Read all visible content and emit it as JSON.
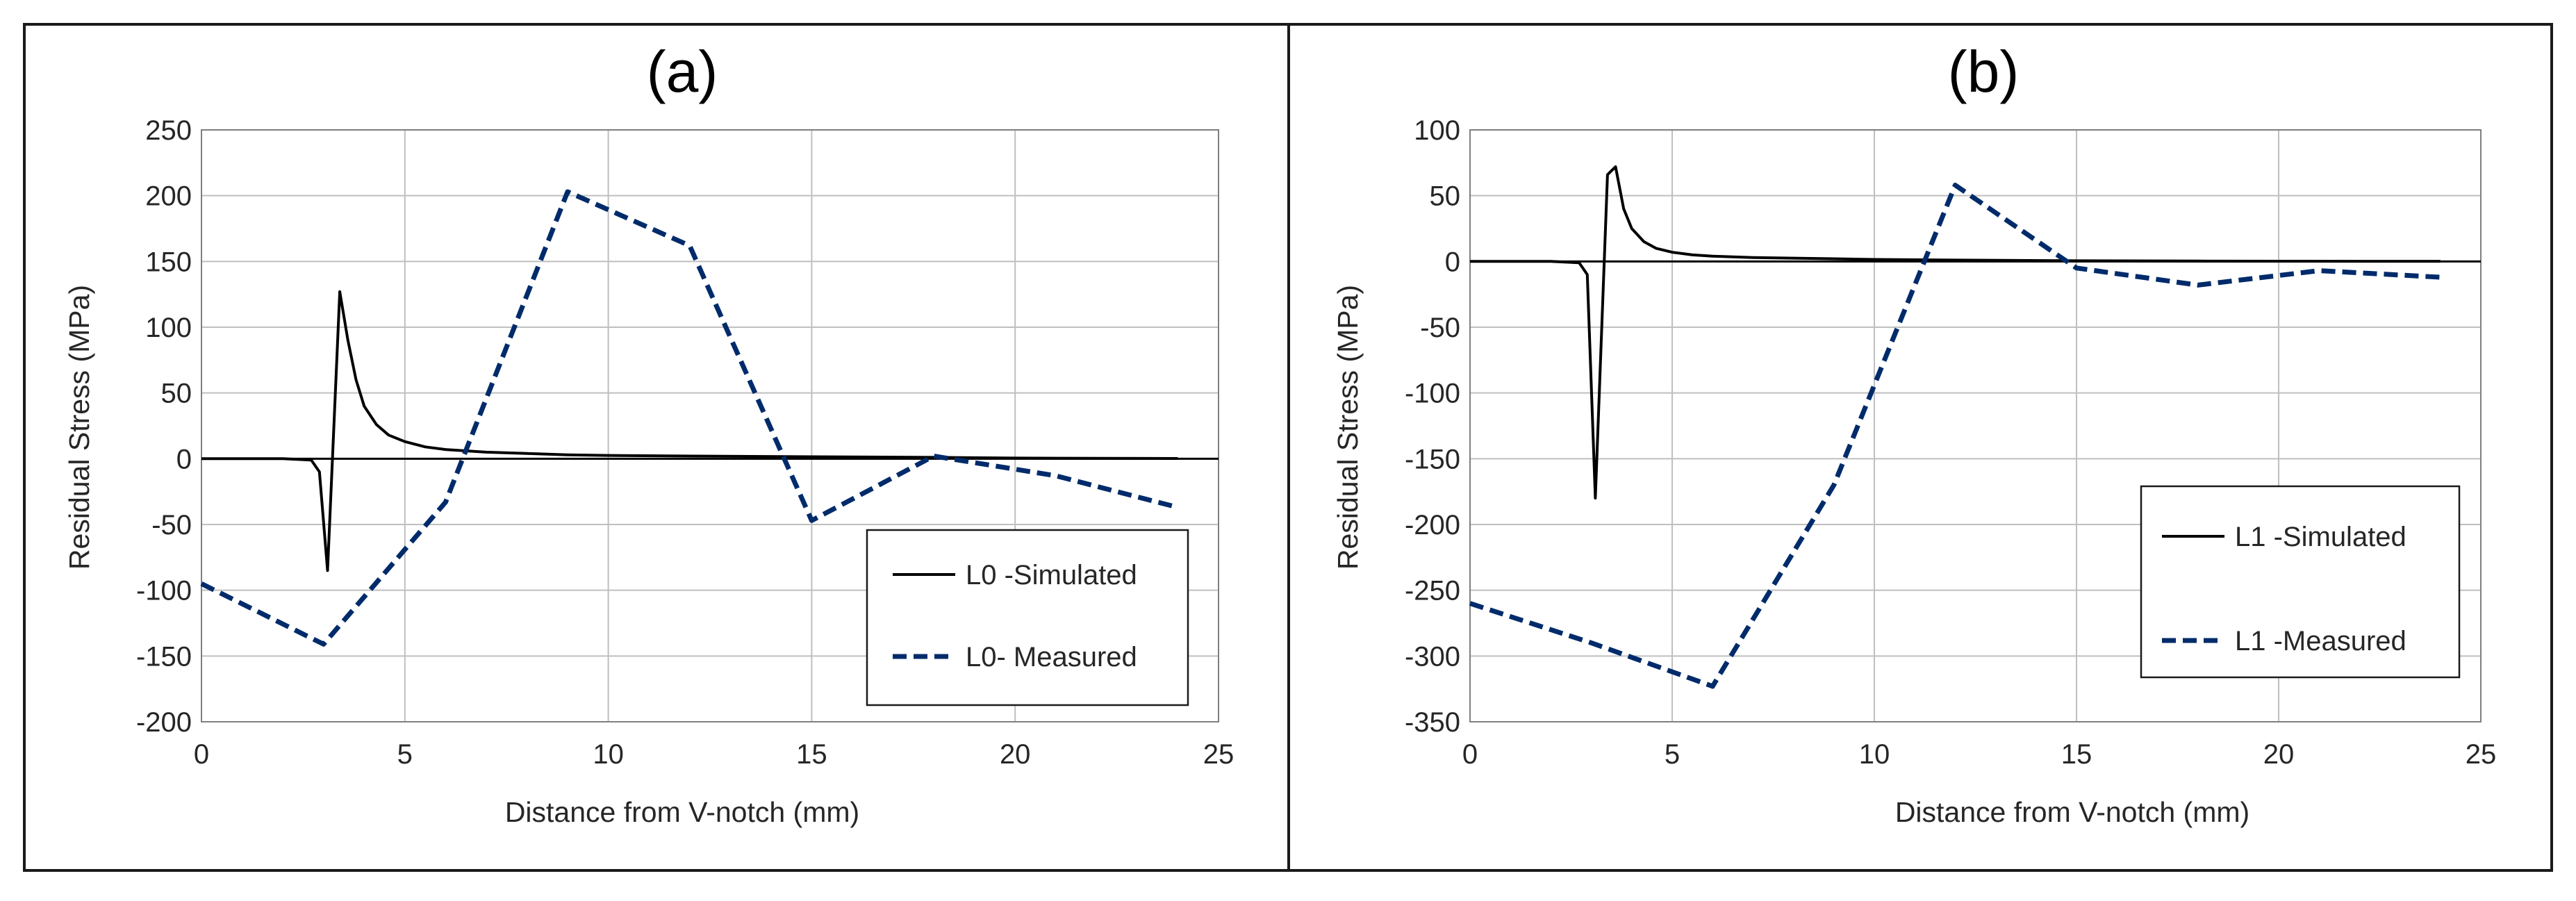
{
  "colors": {
    "frame": "#1a1a1a",
    "grid": "#bfbfbf",
    "plot_border": "#7f7f7f",
    "text": "#262626",
    "simulated": "#000000",
    "measured": "#002b6b"
  },
  "chart_data": [
    {
      "type": "line",
      "title": "(a)",
      "xlabel": "Distance from V-notch (mm)",
      "ylabel": "Residual Stress (MPa)",
      "xlim": [
        0,
        25
      ],
      "ylim": [
        -200,
        250
      ],
      "xticks": [
        0,
        5,
        10,
        15,
        20,
        25
      ],
      "yticks": [
        -200,
        -150,
        -100,
        -50,
        0,
        50,
        100,
        150,
        200,
        250
      ],
      "grid": true,
      "legend_position": "bottom-right",
      "series": [
        {
          "name": "L0 -Simulated",
          "style": "solid",
          "x": [
            0,
            1,
            2,
            2.7,
            2.9,
            3.1,
            3.4,
            3.6,
            3.8,
            4.0,
            4.3,
            4.6,
            5.0,
            5.5,
            6,
            7,
            8,
            9,
            10,
            12,
            15,
            18,
            20,
            22,
            24
          ],
          "y": [
            0,
            0,
            0,
            -1,
            -10,
            -85,
            127,
            90,
            60,
            40,
            26,
            18,
            13,
            9,
            7,
            5,
            4,
            3,
            2.5,
            2,
            1.5,
            1,
            0.5,
            0.3,
            0.2
          ]
        },
        {
          "name": "L0- Measured",
          "style": "dashed",
          "x": [
            0,
            3,
            6,
            9,
            12,
            15,
            18,
            21,
            24
          ],
          "y": [
            -95,
            -141,
            -33,
            203,
            162,
            -47,
            2,
            -13,
            -37
          ]
        }
      ]
    },
    {
      "type": "line",
      "title": "(b)",
      "xlabel": "Distance from V-notch (mm)",
      "ylabel": "Residual Stress (MPa)",
      "xlim": [
        0,
        25
      ],
      "ylim": [
        -350,
        100
      ],
      "xticks": [
        0,
        5,
        10,
        15,
        20,
        25
      ],
      "yticks": [
        -350,
        -300,
        -250,
        -200,
        -150,
        -100,
        -50,
        0,
        50,
        100
      ],
      "grid": true,
      "legend_position": "bottom-right",
      "series": [
        {
          "name": "L1 -Simulated",
          "style": "solid",
          "x": [
            0,
            1,
            2,
            2.7,
            2.9,
            3.1,
            3.4,
            3.6,
            3.8,
            4.0,
            4.3,
            4.6,
            5.0,
            5.5,
            6,
            7,
            8,
            9,
            10,
            12,
            15,
            18,
            20,
            22,
            24
          ],
          "y": [
            0,
            0,
            0,
            -1,
            -10,
            -180,
            66,
            72,
            40,
            25,
            15,
            10,
            7,
            5,
            4,
            3,
            2.5,
            2,
            1.5,
            1,
            0.5,
            0.3,
            0.2,
            0.1,
            0.1
          ]
        },
        {
          "name": "L1 -Measured",
          "style": "dashed",
          "x": [
            0,
            3,
            6,
            9,
            12,
            15,
            18,
            21,
            24
          ],
          "y": [
            -260,
            -290,
            -323,
            -170,
            58,
            -5,
            -18,
            -7,
            -12
          ]
        }
      ]
    }
  ]
}
